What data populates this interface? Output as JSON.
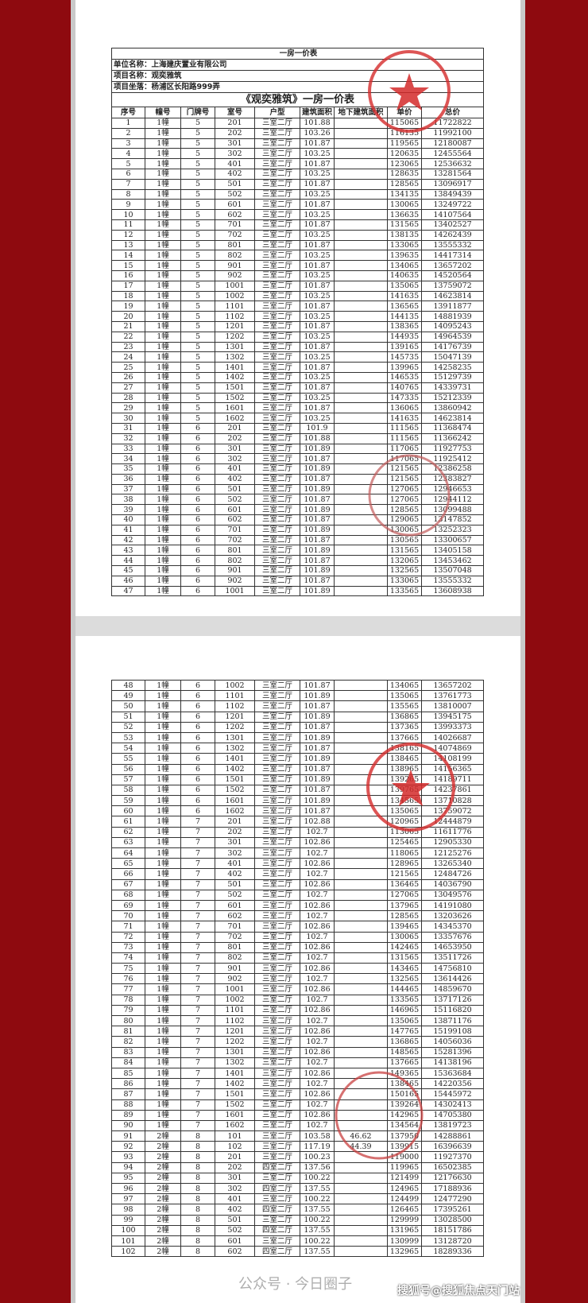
{
  "doc": {
    "title": "一房一价表",
    "company_label": "单位名称：上海建庆置业有限公司",
    "project_label": "项目名称：观奕雅筑",
    "location_label": "项目坐落：杨浦区长阳路999弄",
    "table_title": "《观奕雅筑》一房一价表",
    "columns": [
      "序号",
      "幢号",
      "门牌号",
      "室号",
      "户型",
      "建筑面积",
      "地下建筑面积",
      "单价",
      "总价"
    ]
  },
  "stamp_color": "#d42a2a",
  "page1_rows": [
    [
      "1",
      "1幢",
      "5",
      "201",
      "三室二厅",
      "101.88",
      "",
      "115065",
      "11722822"
    ],
    [
      "2",
      "1幢",
      "5",
      "202",
      "三室二厅",
      "103.26",
      "",
      "116135",
      "11992100"
    ],
    [
      "3",
      "1幢",
      "5",
      "301",
      "三室二厅",
      "101.87",
      "",
      "119565",
      "12180087"
    ],
    [
      "4",
      "1幢",
      "5",
      "302",
      "三室二厅",
      "103.25",
      "",
      "120635",
      "12455564"
    ],
    [
      "5",
      "1幢",
      "5",
      "401",
      "三室二厅",
      "101.87",
      "",
      "123065",
      "12536632"
    ],
    [
      "6",
      "1幢",
      "5",
      "402",
      "三室二厅",
      "103.25",
      "",
      "128635",
      "13281564"
    ],
    [
      "7",
      "1幢",
      "5",
      "501",
      "三室二厅",
      "101.87",
      "",
      "128565",
      "13096917"
    ],
    [
      "8",
      "1幢",
      "5",
      "502",
      "三室二厅",
      "103.25",
      "",
      "134135",
      "13849439"
    ],
    [
      "9",
      "1幢",
      "5",
      "601",
      "三室二厅",
      "101.87",
      "",
      "130065",
      "13249722"
    ],
    [
      "10",
      "1幢",
      "5",
      "602",
      "三室二厅",
      "103.25",
      "",
      "136635",
      "14107564"
    ],
    [
      "11",
      "1幢",
      "5",
      "701",
      "三室二厅",
      "101.87",
      "",
      "131565",
      "13402527"
    ],
    [
      "12",
      "1幢",
      "5",
      "702",
      "三室二厅",
      "103.25",
      "",
      "138135",
      "14262439"
    ],
    [
      "13",
      "1幢",
      "5",
      "801",
      "三室二厅",
      "101.87",
      "",
      "133065",
      "13555332"
    ],
    [
      "14",
      "1幢",
      "5",
      "802",
      "三室二厅",
      "103.25",
      "",
      "139635",
      "14417314"
    ],
    [
      "15",
      "1幢",
      "5",
      "901",
      "三室二厅",
      "101.87",
      "",
      "134065",
      "13657202"
    ],
    [
      "16",
      "1幢",
      "5",
      "902",
      "三室二厅",
      "103.25",
      "",
      "140635",
      "14520564"
    ],
    [
      "17",
      "1幢",
      "5",
      "1001",
      "三室二厅",
      "101.87",
      "",
      "135065",
      "13759072"
    ],
    [
      "18",
      "1幢",
      "5",
      "1002",
      "三室二厅",
      "103.25",
      "",
      "141635",
      "14623814"
    ],
    [
      "19",
      "1幢",
      "5",
      "1101",
      "三室二厅",
      "101.87",
      "",
      "136565",
      "13911877"
    ],
    [
      "20",
      "1幢",
      "5",
      "1102",
      "三室二厅",
      "103.25",
      "",
      "144135",
      "14881939"
    ],
    [
      "21",
      "1幢",
      "5",
      "1201",
      "三室二厅",
      "101.87",
      "",
      "138365",
      "14095243"
    ],
    [
      "22",
      "1幢",
      "5",
      "1202",
      "三室二厅",
      "103.25",
      "",
      "144935",
      "14964539"
    ],
    [
      "23",
      "1幢",
      "5",
      "1301",
      "三室二厅",
      "101.87",
      "",
      "139165",
      "14176739"
    ],
    [
      "24",
      "1幢",
      "5",
      "1302",
      "三室二厅",
      "103.25",
      "",
      "145735",
      "15047139"
    ],
    [
      "25",
      "1幢",
      "5",
      "1401",
      "三室二厅",
      "101.87",
      "",
      "139965",
      "14258235"
    ],
    [
      "26",
      "1幢",
      "5",
      "1402",
      "三室二厅",
      "103.25",
      "",
      "146535",
      "15129739"
    ],
    [
      "27",
      "1幢",
      "5",
      "1501",
      "三室二厅",
      "101.87",
      "",
      "140765",
      "14339731"
    ],
    [
      "28",
      "1幢",
      "5",
      "1502",
      "三室二厅",
      "103.25",
      "",
      "147335",
      "15212339"
    ],
    [
      "29",
      "1幢",
      "5",
      "1601",
      "三室二厅",
      "101.87",
      "",
      "136065",
      "13860942"
    ],
    [
      "30",
      "1幢",
      "5",
      "1602",
      "三室二厅",
      "103.25",
      "",
      "141635",
      "14623814"
    ],
    [
      "31",
      "1幢",
      "6",
      "201",
      "三室二厅",
      "101.9",
      "",
      "111565",
      "11368474"
    ],
    [
      "32",
      "1幢",
      "6",
      "202",
      "三室二厅",
      "101.88",
      "",
      "111565",
      "11366242"
    ],
    [
      "33",
      "1幢",
      "6",
      "301",
      "三室二厅",
      "101.89",
      "",
      "117065",
      "11927753"
    ],
    [
      "34",
      "1幢",
      "6",
      "302",
      "三室二厅",
      "101.87",
      "",
      "117065",
      "11925412"
    ],
    [
      "35",
      "1幢",
      "6",
      "401",
      "三室二厅",
      "101.89",
      "",
      "121565",
      "12386258"
    ],
    [
      "36",
      "1幢",
      "6",
      "402",
      "三室二厅",
      "101.87",
      "",
      "121565",
      "12383827"
    ],
    [
      "37",
      "1幢",
      "6",
      "501",
      "三室二厅",
      "101.89",
      "",
      "127065",
      "12946653"
    ],
    [
      "38",
      "1幢",
      "6",
      "502",
      "三室二厅",
      "101.87",
      "",
      "127065",
      "12944112"
    ],
    [
      "39",
      "1幢",
      "6",
      "601",
      "三室二厅",
      "101.89",
      "",
      "128565",
      "13099488"
    ],
    [
      "40",
      "1幢",
      "6",
      "602",
      "三室二厅",
      "101.87",
      "",
      "129065",
      "13147852"
    ],
    [
      "41",
      "1幢",
      "6",
      "701",
      "三室二厅",
      "101.89",
      "",
      "130065",
      "13252323"
    ],
    [
      "42",
      "1幢",
      "6",
      "702",
      "三室二厅",
      "101.87",
      "",
      "130565",
      "13300657"
    ],
    [
      "43",
      "1幢",
      "6",
      "801",
      "三室二厅",
      "101.89",
      "",
      "131565",
      "13405158"
    ],
    [
      "44",
      "1幢",
      "6",
      "802",
      "三室二厅",
      "101.87",
      "",
      "132065",
      "13453462"
    ],
    [
      "45",
      "1幢",
      "6",
      "901",
      "三室二厅",
      "101.89",
      "",
      "132565",
      "13507048"
    ],
    [
      "46",
      "1幢",
      "6",
      "902",
      "三室二厅",
      "101.87",
      "",
      "133065",
      "13555332"
    ],
    [
      "47",
      "1幢",
      "6",
      "1001",
      "三室二厅",
      "101.89",
      "",
      "133565",
      "13608938"
    ]
  ],
  "page2_rows": [
    [
      "48",
      "1幢",
      "6",
      "1002",
      "三室二厅",
      "101.87",
      "",
      "134065",
      "13657202"
    ],
    [
      "49",
      "1幢",
      "6",
      "1101",
      "三室二厅",
      "101.89",
      "",
      "135065",
      "13761773"
    ],
    [
      "50",
      "1幢",
      "6",
      "1102",
      "三室二厅",
      "101.87",
      "",
      "135565",
      "13810007"
    ],
    [
      "51",
      "1幢",
      "6",
      "1201",
      "三室二厅",
      "101.89",
      "",
      "136865",
      "13945175"
    ],
    [
      "52",
      "1幢",
      "6",
      "1202",
      "三室二厅",
      "101.87",
      "",
      "137365",
      "13993373"
    ],
    [
      "53",
      "1幢",
      "6",
      "1301",
      "三室二厅",
      "101.89",
      "",
      "137665",
      "14026687"
    ],
    [
      "54",
      "1幢",
      "6",
      "1302",
      "三室二厅",
      "101.87",
      "",
      "138165",
      "14074869"
    ],
    [
      "55",
      "1幢",
      "6",
      "1401",
      "三室二厅",
      "101.89",
      "",
      "138465",
      "14108199"
    ],
    [
      "56",
      "1幢",
      "6",
      "1402",
      "三室二厅",
      "101.87",
      "",
      "138965",
      "14156365"
    ],
    [
      "57",
      "1幢",
      "6",
      "1501",
      "三室二厅",
      "101.89",
      "",
      "139265",
      "14189711"
    ],
    [
      "58",
      "1幢",
      "6",
      "1502",
      "三室二厅",
      "101.87",
      "",
      "139765",
      "14237861"
    ],
    [
      "59",
      "1幢",
      "6",
      "1601",
      "三室二厅",
      "101.89",
      "",
      "134565",
      "13710828"
    ],
    [
      "60",
      "1幢",
      "6",
      "1602",
      "三室二厅",
      "101.87",
      "",
      "135065",
      "13759072"
    ],
    [
      "61",
      "1幢",
      "7",
      "201",
      "三室二厅",
      "102.88",
      "",
      "120965",
      "12444879"
    ],
    [
      "62",
      "1幢",
      "7",
      "202",
      "三室二厅",
      "102.7",
      "",
      "113065",
      "11611776"
    ],
    [
      "63",
      "1幢",
      "7",
      "301",
      "三室二厅",
      "102.86",
      "",
      "125465",
      "12905330"
    ],
    [
      "64",
      "1幢",
      "7",
      "302",
      "三室二厅",
      "102.7",
      "",
      "118065",
      "12125276"
    ],
    [
      "65",
      "1幢",
      "7",
      "401",
      "三室二厅",
      "102.86",
      "",
      "128965",
      "13265340"
    ],
    [
      "66",
      "1幢",
      "7",
      "402",
      "三室二厅",
      "102.7",
      "",
      "121565",
      "12484726"
    ],
    [
      "67",
      "1幢",
      "7",
      "501",
      "三室二厅",
      "102.86",
      "",
      "136465",
      "14036790"
    ],
    [
      "68",
      "1幢",
      "7",
      "502",
      "三室二厅",
      "102.7",
      "",
      "127065",
      "13049576"
    ],
    [
      "69",
      "1幢",
      "7",
      "601",
      "三室二厅",
      "102.86",
      "",
      "137965",
      "14191080"
    ],
    [
      "70",
      "1幢",
      "7",
      "602",
      "三室二厅",
      "102.7",
      "",
      "128565",
      "13203626"
    ],
    [
      "71",
      "1幢",
      "7",
      "701",
      "三室二厅",
      "102.86",
      "",
      "139465",
      "14345370"
    ],
    [
      "72",
      "1幢",
      "7",
      "702",
      "三室二厅",
      "102.7",
      "",
      "130065",
      "13357676"
    ],
    [
      "73",
      "1幢",
      "7",
      "801",
      "三室二厅",
      "102.86",
      "",
      "142465",
      "14653950"
    ],
    [
      "74",
      "1幢",
      "7",
      "802",
      "三室二厅",
      "102.7",
      "",
      "131565",
      "13511726"
    ],
    [
      "75",
      "1幢",
      "7",
      "901",
      "三室二厅",
      "102.86",
      "",
      "143465",
      "14756810"
    ],
    [
      "76",
      "1幢",
      "7",
      "902",
      "三室二厅",
      "102.7",
      "",
      "132565",
      "13614426"
    ],
    [
      "77",
      "1幢",
      "7",
      "1001",
      "三室二厅",
      "102.86",
      "",
      "144465",
      "14859670"
    ],
    [
      "78",
      "1幢",
      "7",
      "1002",
      "三室二厅",
      "102.7",
      "",
      "133565",
      "13717126"
    ],
    [
      "79",
      "1幢",
      "7",
      "1101",
      "三室二厅",
      "102.86",
      "",
      "146965",
      "15116820"
    ],
    [
      "80",
      "1幢",
      "7",
      "1102",
      "三室二厅",
      "102.7",
      "",
      "135065",
      "13871176"
    ],
    [
      "81",
      "1幢",
      "7",
      "1201",
      "三室二厅",
      "102.86",
      "",
      "147765",
      "15199108"
    ],
    [
      "82",
      "1幢",
      "7",
      "1202",
      "三室二厅",
      "102.7",
      "",
      "136865",
      "14056036"
    ],
    [
      "83",
      "1幢",
      "7",
      "1301",
      "三室二厅",
      "102.86",
      "",
      "148565",
      "15281396"
    ],
    [
      "84",
      "1幢",
      "7",
      "1302",
      "三室二厅",
      "102.7",
      "",
      "137665",
      "14138196"
    ],
    [
      "85",
      "1幢",
      "7",
      "1401",
      "三室二厅",
      "102.86",
      "",
      "149365",
      "15363684"
    ],
    [
      "86",
      "1幢",
      "7",
      "1402",
      "三室二厅",
      "102.7",
      "",
      "138465",
      "14220356"
    ],
    [
      "87",
      "1幢",
      "7",
      "1501",
      "三室二厅",
      "102.86",
      "",
      "150165",
      "15445972"
    ],
    [
      "88",
      "1幢",
      "7",
      "1502",
      "三室二厅",
      "102.7",
      "",
      "139264",
      "14302413"
    ],
    [
      "89",
      "1幢",
      "7",
      "1601",
      "三室二厅",
      "102.86",
      "",
      "142965",
      "14705380"
    ],
    [
      "90",
      "1幢",
      "7",
      "1602",
      "三室二厅",
      "102.7",
      "",
      "134564",
      "13819723"
    ],
    [
      "91",
      "2幢",
      "8",
      "101",
      "三室二厅",
      "103.58",
      "46.62",
      "137950",
      "14288861"
    ],
    [
      "92",
      "2幢",
      "8",
      "102",
      "三室二厅",
      "117.19",
      "44.39",
      "139915",
      "16396639"
    ],
    [
      "93",
      "2幢",
      "8",
      "201",
      "三室二厅",
      "100.23",
      "",
      "119000",
      "11927370"
    ],
    [
      "94",
      "2幢",
      "8",
      "202",
      "四室二厅",
      "137.56",
      "",
      "119965",
      "16502385"
    ],
    [
      "95",
      "2幢",
      "8",
      "301",
      "三室二厅",
      "100.22",
      "",
      "121499",
      "12176630"
    ],
    [
      "96",
      "2幢",
      "8",
      "302",
      "四室二厅",
      "137.55",
      "",
      "124965",
      "17188936"
    ],
    [
      "97",
      "2幢",
      "8",
      "401",
      "三室二厅",
      "100.22",
      "",
      "124499",
      "12477290"
    ],
    [
      "98",
      "2幢",
      "8",
      "402",
      "四室二厅",
      "137.55",
      "",
      "126465",
      "17395261"
    ],
    [
      "99",
      "2幢",
      "8",
      "501",
      "三室二厅",
      "100.22",
      "",
      "129999",
      "13028500"
    ],
    [
      "100",
      "2幢",
      "8",
      "502",
      "四室二厅",
      "137.55",
      "",
      "131965",
      "18151786"
    ],
    [
      "101",
      "2幢",
      "8",
      "601",
      "三室二厅",
      "100.22",
      "",
      "130999",
      "13128720"
    ],
    [
      "102",
      "2幢",
      "8",
      "602",
      "四室二厅",
      "137.55",
      "",
      "132965",
      "18289336"
    ]
  ],
  "watermark": {
    "wechat": "公众号 · 今日圈子",
    "sohu": "搜狐号@搜狐焦点天门站"
  }
}
